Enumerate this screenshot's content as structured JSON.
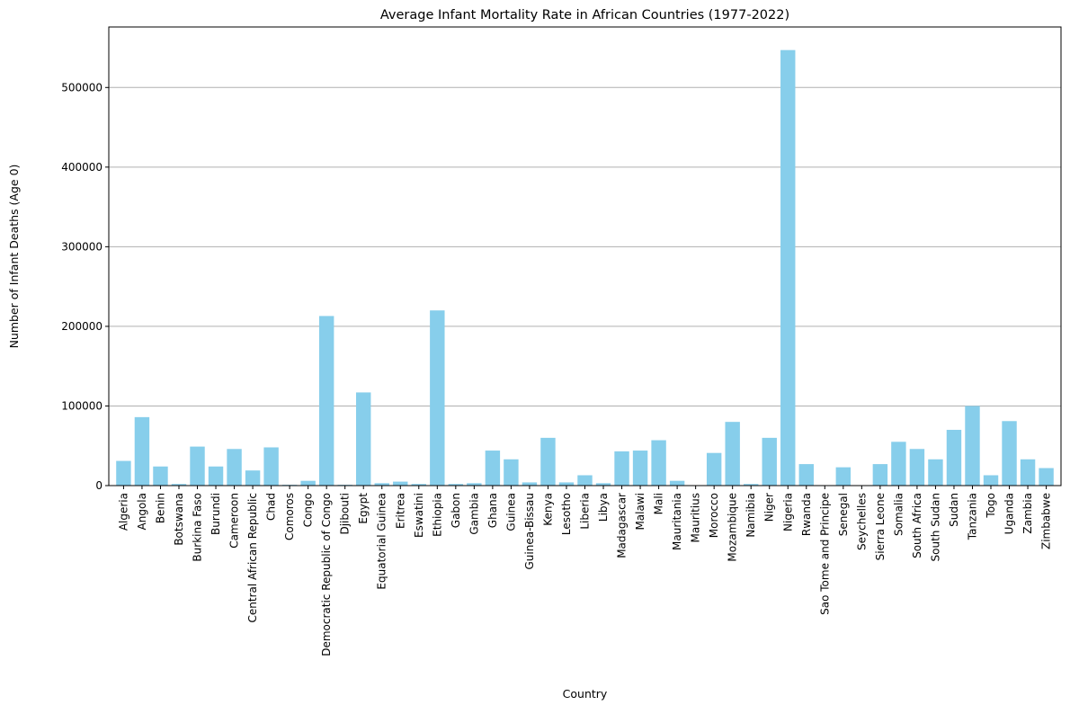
{
  "chart_data": {
    "type": "bar",
    "title": "Average Infant Mortality Rate in African Countries (1977-2022)",
    "xlabel": "Country",
    "ylabel": "Number of Infant Deaths (Age 0)",
    "ylim": [
      0,
      576000
    ],
    "yticks": [
      0,
      100000,
      200000,
      300000,
      400000,
      500000
    ],
    "ytick_labels": [
      "0",
      "100000",
      "200000",
      "300000",
      "400000",
      "500000"
    ],
    "grid": "y",
    "legend": "none",
    "bar_color": "#87ceeb",
    "grid_color": "#b0b0b0",
    "categories": [
      "Algeria",
      "Angola",
      "Benin",
      "Botswana",
      "Burkina Faso",
      "Burundi",
      "Cameroon",
      "Central African Republic",
      "Chad",
      "Comoros",
      "Congo",
      "Democratic Republic of Congo",
      "Djibouti",
      "Egypt",
      "Equatorial Guinea",
      "Eritrea",
      "Eswatini",
      "Ethiopia",
      "Gabon",
      "Gambia",
      "Ghana",
      "Guinea",
      "Guinea-Bissau",
      "Kenya",
      "Lesotho",
      "Liberia",
      "Libya",
      "Madagascar",
      "Malawi",
      "Mali",
      "Mauritania",
      "Mauritius",
      "Morocco",
      "Mozambique",
      "Namibia",
      "Niger",
      "Nigeria",
      "Rwanda",
      "Sao Tome and Principe",
      "Senegal",
      "Seychelles",
      "Sierra Leone",
      "Somalia",
      "South Africa",
      "South Sudan",
      "Sudan",
      "Tanzania",
      "Togo",
      "Uganda",
      "Zambia",
      "Zimbabwe"
    ],
    "values": [
      31000,
      86000,
      24000,
      2000,
      49000,
      24000,
      46000,
      19000,
      48000,
      1000,
      6000,
      213000,
      1000,
      117000,
      3000,
      5000,
      2000,
      220000,
      2000,
      3000,
      44000,
      33000,
      4000,
      60000,
      4000,
      13000,
      3000,
      43000,
      44000,
      57000,
      6000,
      500,
      41000,
      80000,
      2000,
      60000,
      547000,
      27000,
      300,
      23000,
      100,
      27000,
      55000,
      46000,
      33000,
      70000,
      100000,
      13000,
      81000,
      33000,
      22000
    ]
  }
}
